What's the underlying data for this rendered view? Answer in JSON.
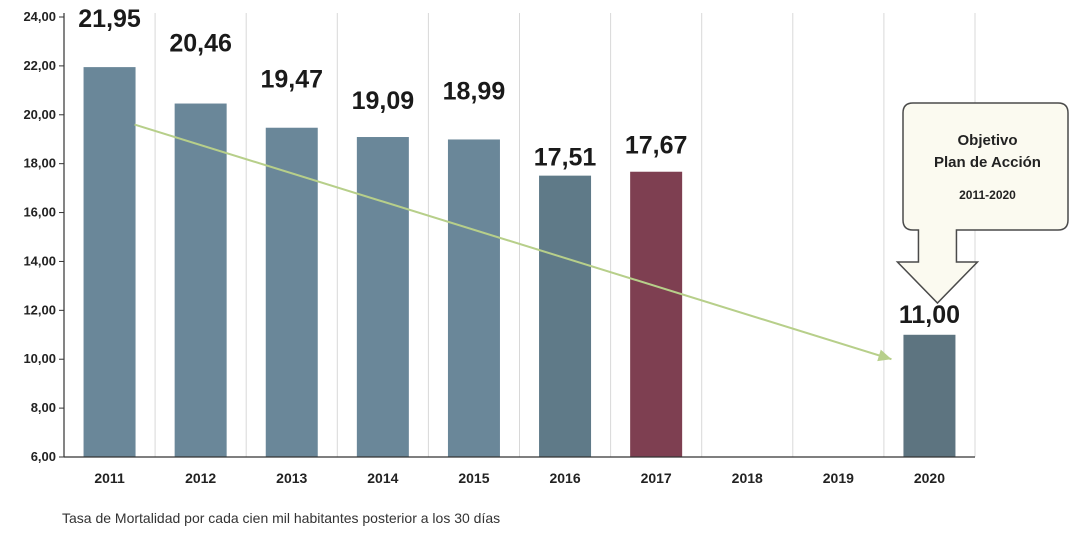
{
  "chart_data": {
    "type": "bar",
    "categories": [
      "2011",
      "2012",
      "2013",
      "2014",
      "2015",
      "2016",
      "2017",
      "2018",
      "2019",
      "2020"
    ],
    "values": [
      21.95,
      20.46,
      19.47,
      19.09,
      18.99,
      17.51,
      17.67,
      null,
      null,
      11.0
    ],
    "value_labels": [
      "21,95",
      "20,46",
      "19,47",
      "19,09",
      "18,99",
      "17,51",
      "17,67",
      "",
      "",
      "11,00"
    ],
    "bar_colors": [
      "#6a8799",
      "#6a8799",
      "#6a8799",
      "#6a8799",
      "#6a8799",
      "#5f7a88",
      "#7e3f51",
      "",
      "",
      "#5d7480"
    ],
    "ylim": [
      6,
      24
    ],
    "y_ticks": [
      "6,00",
      "8,00",
      "10,00",
      "12,00",
      "14,00",
      "16,00",
      "18,00",
      "20,00",
      "22,00",
      "24,00"
    ],
    "y_tick_values": [
      6,
      8,
      10,
      12,
      14,
      16,
      18,
      20,
      22,
      24
    ],
    "grid": "vertical",
    "trend_arrow": {
      "from": {
        "x": "2011",
        "y": 19.6
      },
      "to": {
        "x": "2020",
        "y": 10.0
      },
      "color": "#b7cf8a"
    },
    "callout": {
      "title_line1": "Objetivo",
      "title_line2": "Plan de Acción",
      "subtitle": "2011-2020",
      "points_to": "2020"
    },
    "caption": "Tasa de Mortalidad por cada cien mil habitantes posterior a los 30 días"
  }
}
